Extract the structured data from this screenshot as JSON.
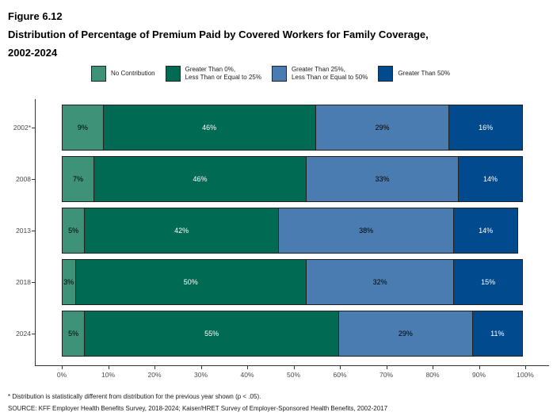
{
  "title": {
    "figure_label": "Figure 6.12",
    "main_line1": "Distribution of Percentage of Premium Paid by Covered Workers for Family Coverage,",
    "main_line2": "2002-2024"
  },
  "legend": {
    "items": [
      {
        "label_lines": [
          "No Contribution"
        ],
        "color": "#3E9278"
      },
      {
        "label_lines": [
          "Greater Than 0%,",
          "Less Than or Equal to 25%"
        ],
        "color": "#006A53"
      },
      {
        "label_lines": [
          "Greater Than 25%,",
          "Less Than or Equal to 50%"
        ],
        "color": "#4A7CB2"
      },
      {
        "label_lines": [
          "Greater Than 50%"
        ],
        "color": "#004A8D"
      }
    ]
  },
  "chart_data": {
    "type": "bar",
    "orientation": "horizontal-stacked",
    "title": "Distribution of Percentage of Premium Paid by Covered Workers for Family Coverage, 2002-2024",
    "categories": [
      "2002*",
      "2008",
      "2013",
      "2018",
      "2024"
    ],
    "series": [
      {
        "name": "No Contribution",
        "color": "#3E9278",
        "label_color": "#000000",
        "values": [
          9,
          7,
          5,
          3,
          5
        ]
      },
      {
        "name": "Greater Than 0%, Less Than or Equal to 25%",
        "color": "#006A53",
        "label_color": "#FFFFFF",
        "values": [
          46,
          46,
          42,
          50,
          55
        ]
      },
      {
        "name": "Greater Than 25%, Less Than or Equal to 50%",
        "color": "#4A7CB2",
        "label_color": "#000000",
        "values": [
          29,
          33,
          38,
          32,
          29
        ]
      },
      {
        "name": "Greater Than 50%",
        "color": "#004A8D",
        "label_color": "#FFFFFF",
        "values": [
          16,
          14,
          14,
          15,
          11
        ]
      }
    ],
    "value_suffix": "%",
    "x_ticks": [
      "0%",
      "10%",
      "20%",
      "30%",
      "40%",
      "50%",
      "60%",
      "70%",
      "80%",
      "90%",
      "100%"
    ],
    "xlim": [
      0,
      100
    ],
    "grid": false,
    "legend_position": "top"
  },
  "footnotes": {
    "note": "* Distribution is statistically different from distribution for the previous year shown (p < .05).",
    "source": "SOURCE: KFF Employer Health Benefits Survey, 2018-2024; Kaiser/HRET Survey of Employer-Sponsored Health Benefits, 2002-2017"
  }
}
